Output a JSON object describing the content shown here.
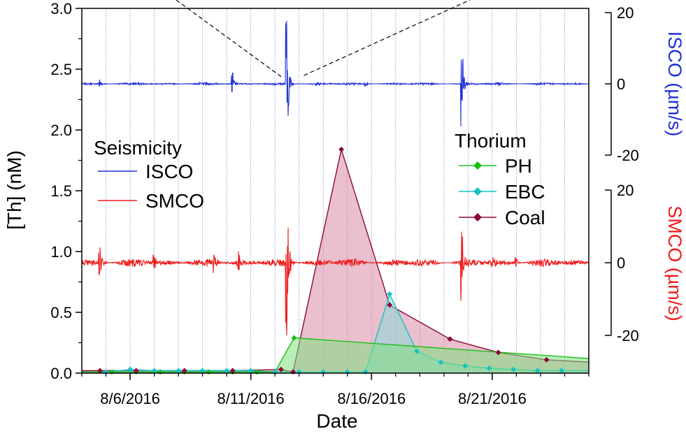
{
  "chart_data": {
    "type": "line",
    "xlabel": "Date",
    "ylabel": "[Th] (nM)",
    "xlim": [
      "2016-08-04",
      "2016-08-25"
    ],
    "ylim": [
      0,
      3.0
    ],
    "y_ticks": [
      0.0,
      0.5,
      1.0,
      1.5,
      2.0,
      2.5,
      3.0
    ],
    "y_tick_labels": [
      "0.0",
      "0.5",
      "1.0",
      "1.5",
      "2.0",
      "2.5",
      "3.0"
    ],
    "x_ticks": [
      "2016-08-06",
      "2016-08-11",
      "2016-08-16",
      "2016-08-21"
    ],
    "x_tick_labels": [
      "8/6/2016",
      "8/11/2016",
      "8/16/2016",
      "8/21/2016"
    ],
    "grid": "vertical dotted daily",
    "right_axes": [
      {
        "id": "isco",
        "label": "ISCO (µm/s)",
        "range": [
          -20,
          20
        ],
        "ticks": [
          20,
          0,
          -20
        ],
        "tick_labels": [
          "20",
          "0",
          "-20"
        ],
        "color": "#1f2fd6"
      },
      {
        "id": "smco",
        "label": "SMCO (µm/s)",
        "range": [
          -20,
          20
        ],
        "ticks": [
          20,
          0,
          -20
        ],
        "tick_labels": [
          "20",
          "0",
          "-20"
        ],
        "color": "#ee1c1c"
      }
    ],
    "legend_seismicity": {
      "title": "Seismicity",
      "placement": "left",
      "entries": [
        {
          "name": "ISCO",
          "color": "#1f2fd6"
        },
        {
          "name": "SMCO",
          "color": "#ee1c1c"
        }
      ]
    },
    "legend_thorium": {
      "title": "Thorium",
      "placement": "center-right",
      "entries": [
        {
          "name": "PH",
          "color": "#18c018",
          "marker": "diamond"
        },
        {
          "name": "EBC",
          "color": "#17c2c2",
          "marker": "diamond"
        },
        {
          "name": "Coal",
          "color": "#8b0a3a",
          "marker": "diamond"
        }
      ]
    },
    "series": [
      {
        "name": "PH",
        "color": "#18c018",
        "fill": "#7ee07e",
        "x": [
          "2016-08-04 00:00",
          "2016-08-05 06:00",
          "2016-08-06 06:00",
          "2016-08-07 06:00",
          "2016-08-08 06:00",
          "2016-08-09 06:00",
          "2016-08-10 06:00",
          "2016-08-11 06:00",
          "2016-08-12 00:00",
          "2016-08-12 19:00",
          "2016-08-25 00:00"
        ],
        "y": [
          0.01,
          0.01,
          0.01,
          0.01,
          0.01,
          0.01,
          0.01,
          0.01,
          0.01,
          0.29,
          0.12
        ]
      },
      {
        "name": "EBC",
        "color": "#17c2c2",
        "fill": "#8ad8d8",
        "x": [
          "2016-08-04 00:00",
          "2016-08-05 00:00",
          "2016-08-06 00:00",
          "2016-08-07 00:00",
          "2016-08-08 00:00",
          "2016-08-09 00:00",
          "2016-08-10 00:00",
          "2016-08-11 00:00",
          "2016-08-12 00:00",
          "2016-08-13 00:00",
          "2016-08-14 00:00",
          "2016-08-15 00:00",
          "2016-08-15 18:00",
          "2016-08-16 18:00",
          "2016-08-17 21:00",
          "2016-08-18 21:00",
          "2016-08-19 21:00",
          "2016-08-20 21:00",
          "2016-08-21 21:00",
          "2016-08-22 21:00",
          "2016-08-23 21:00",
          "2016-08-25 00:00"
        ],
        "y": [
          0.01,
          0.01,
          0.03,
          0.02,
          0.02,
          0.02,
          0.02,
          0.02,
          0.01,
          0.01,
          0.01,
          0.01,
          0.01,
          0.65,
          0.18,
          0.09,
          0.06,
          0.04,
          0.03,
          0.02,
          0.02,
          0.02
        ]
      },
      {
        "name": "Coal",
        "color": "#8b0a3a",
        "fill": "#d98aa6",
        "x": [
          "2016-08-04 00:00",
          "2016-08-04 18:00",
          "2016-08-06 06:00",
          "2016-08-08 06:00",
          "2016-08-10 06:00",
          "2016-08-12 06:00",
          "2016-08-12 18:00",
          "2016-08-14 18:00",
          "2016-08-16 18:00",
          "2016-08-19 06:00",
          "2016-08-21 06:00",
          "2016-08-23 06:00",
          "2016-08-25 00:00"
        ],
        "y": [
          0.02,
          0.02,
          0.02,
          0.02,
          0.02,
          0.03,
          0.01,
          1.84,
          0.56,
          0.28,
          0.17,
          0.11,
          0.09
        ]
      }
    ],
    "seismic_traces": [
      {
        "name": "ISCO",
        "axis": "isco",
        "color": "#1f2fd6",
        "baseline": 0,
        "background_noise": 0.35,
        "events": [
          {
            "x": "2016-08-04 18:00",
            "amplitude": 1.6
          },
          {
            "x": "2016-08-10 06:00",
            "amplitude": 3.5
          },
          {
            "x": "2016-08-12 12:00",
            "amplitude": 20
          },
          {
            "x": "2016-08-19 18:00",
            "amplitude": 12
          },
          {
            "x": "2016-08-13 18:00",
            "amplitude": 0.8
          },
          {
            "x": "2016-08-15 18:00",
            "amplitude": 0.6
          },
          {
            "x": "2016-08-21 06:00",
            "amplitude": 0.6
          }
        ]
      },
      {
        "name": "SMCO",
        "axis": "smco",
        "color": "#ee1c1c",
        "baseline": 0,
        "background_noise": 1.2,
        "events": [
          {
            "x": "2016-08-04 18:00",
            "amplitude": 5
          },
          {
            "x": "2016-08-07 00:00",
            "amplitude": 2.2
          },
          {
            "x": "2016-08-09 12:00",
            "amplitude": 2.5
          },
          {
            "x": "2016-08-10 12:00",
            "amplitude": 3
          },
          {
            "x": "2016-08-12 12:00",
            "amplitude": 20
          },
          {
            "x": "2016-08-19 18:00",
            "amplitude": 10
          },
          {
            "x": "2016-08-21 00:00",
            "amplitude": 1.5
          },
          {
            "x": "2016-08-22 00:00",
            "amplitude": 1.2
          }
        ]
      }
    ],
    "annotation": {
      "type": "dashed zoom lines",
      "x": "2016-08-12 12:00",
      "color": "#000000"
    }
  }
}
